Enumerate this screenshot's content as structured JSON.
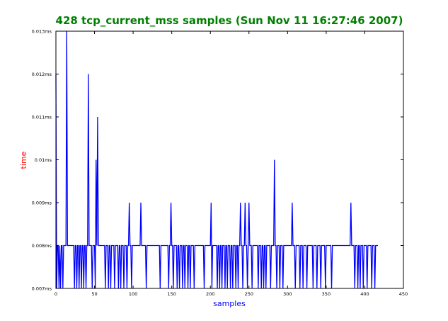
{
  "chart_data": {
    "type": "line",
    "title": "428 tcp_current_mss samples (Sun Nov 11 16:27:46 2007)",
    "xlabel": "samples",
    "ylabel": "time",
    "xlim": [
      0,
      450
    ],
    "ylim": [
      0.007,
      0.013
    ],
    "x_ticks": [
      0,
      50,
      100,
      150,
      200,
      250,
      300,
      350,
      400,
      450
    ],
    "x_tick_labels": [
      "0",
      "50",
      "100",
      "150",
      "200",
      "250",
      "300",
      "350",
      "400",
      "450"
    ],
    "y_ticks": [
      0.007,
      0.008,
      0.009,
      0.01,
      0.011,
      0.012,
      0.013
    ],
    "y_tick_labels": [
      "0.007ms",
      "0.008ms",
      "0.009ms",
      "0.01ms",
      "0.011ms",
      "0.012ms",
      "0.013ms"
    ],
    "grid": false,
    "legend": "none",
    "colors": {
      "title": "#008000",
      "xlabel": "#0000ff",
      "ylabel": "#ff0000",
      "line": "#0000ff"
    },
    "series": [
      {
        "values": [
          0.012,
          0.007,
          0.008,
          0.008,
          0.007,
          0.008,
          0.007,
          0.008,
          0.008,
          0.007,
          0.008,
          0.008,
          0.008,
          0.008,
          0.013,
          0.008,
          0.008,
          0.008,
          0.008,
          0.008,
          0.008,
          0.008,
          0.008,
          0.008,
          0.007,
          0.008,
          0.008,
          0.007,
          0.008,
          0.008,
          0.007,
          0.008,
          0.008,
          0.007,
          0.008,
          0.008,
          0.007,
          0.008,
          0.008,
          0.007,
          0.008,
          0.008,
          0.012,
          0.008,
          0.008,
          0.008,
          0.008,
          0.007,
          0.008,
          0.008,
          0.008,
          0.007,
          0.01,
          0.008,
          0.011,
          0.008,
          0.008,
          0.008,
          0.008,
          0.008,
          0.008,
          0.008,
          0.008,
          0.008,
          0.007,
          0.008,
          0.008,
          0.008,
          0.007,
          0.008,
          0.008,
          0.007,
          0.008,
          0.008,
          0.008,
          0.008,
          0.007,
          0.008,
          0.008,
          0.008,
          0.008,
          0.007,
          0.008,
          0.008,
          0.007,
          0.008,
          0.008,
          0.008,
          0.007,
          0.008,
          0.008,
          0.008,
          0.007,
          0.008,
          0.008,
          0.009,
          0.008,
          0.008,
          0.007,
          0.008,
          0.008,
          0.008,
          0.008,
          0.008,
          0.008,
          0.008,
          0.008,
          0.008,
          0.008,
          0.008,
          0.009,
          0.008,
          0.008,
          0.008,
          0.008,
          0.008,
          0.008,
          0.007,
          0.008,
          0.008,
          0.008,
          0.008,
          0.008,
          0.008,
          0.008,
          0.008,
          0.008,
          0.008,
          0.008,
          0.008,
          0.008,
          0.008,
          0.008,
          0.008,
          0.008,
          0.007,
          0.008,
          0.008,
          0.008,
          0.008,
          0.008,
          0.008,
          0.008,
          0.008,
          0.008,
          0.008,
          0.007,
          0.008,
          0.008,
          0.009,
          0.008,
          0.008,
          0.007,
          0.008,
          0.008,
          0.008,
          0.008,
          0.007,
          0.008,
          0.008,
          0.007,
          0.008,
          0.008,
          0.008,
          0.007,
          0.008,
          0.008,
          0.007,
          0.008,
          0.008,
          0.008,
          0.007,
          0.008,
          0.008,
          0.007,
          0.008,
          0.008,
          0.008,
          0.008,
          0.007,
          0.008,
          0.008,
          0.008,
          0.008,
          0.008,
          0.008,
          0.008,
          0.008,
          0.008,
          0.008,
          0.008,
          0.008,
          0.007,
          0.008,
          0.008,
          0.008,
          0.008,
          0.008,
          0.008,
          0.008,
          0.008,
          0.009,
          0.007,
          0.008,
          0.008,
          0.008,
          0.008,
          0.008,
          0.008,
          0.007,
          0.008,
          0.008,
          0.007,
          0.008,
          0.008,
          0.007,
          0.008,
          0.008,
          0.008,
          0.007,
          0.008,
          0.008,
          0.007,
          0.008,
          0.008,
          0.008,
          0.007,
          0.008,
          0.008,
          0.007,
          0.008,
          0.008,
          0.008,
          0.007,
          0.008,
          0.008,
          0.007,
          0.008,
          0.008,
          0.009,
          0.008,
          0.008,
          0.007,
          0.008,
          0.008,
          0.009,
          0.008,
          0.008,
          0.007,
          0.008,
          0.009,
          0.008,
          0.008,
          0.008,
          0.007,
          0.008,
          0.008,
          0.008,
          0.008,
          0.008,
          0.008,
          0.008,
          0.007,
          0.008,
          0.008,
          0.008,
          0.007,
          0.008,
          0.008,
          0.007,
          0.008,
          0.008,
          0.007,
          0.008,
          0.008,
          0.008,
          0.008,
          0.008,
          0.007,
          0.008,
          0.008,
          0.008,
          0.008,
          0.01,
          0.008,
          0.008,
          0.007,
          0.008,
          0.008,
          0.008,
          0.007,
          0.008,
          0.008,
          0.008,
          0.007,
          0.008,
          0.008,
          0.008,
          0.008,
          0.008,
          0.008,
          0.008,
          0.008,
          0.008,
          0.008,
          0.008,
          0.009,
          0.008,
          0.008,
          0.008,
          0.007,
          0.008,
          0.008,
          0.008,
          0.008,
          0.008,
          0.007,
          0.008,
          0.008,
          0.008,
          0.007,
          0.008,
          0.008,
          0.008,
          0.008,
          0.007,
          0.008,
          0.008,
          0.008,
          0.008,
          0.008,
          0.008,
          0.008,
          0.007,
          0.008,
          0.008,
          0.008,
          0.008,
          0.007,
          0.008,
          0.008,
          0.008,
          0.008,
          0.007,
          0.008,
          0.008,
          0.008,
          0.008,
          0.008,
          0.007,
          0.008,
          0.008,
          0.008,
          0.008,
          0.008,
          0.008,
          0.008,
          0.007,
          0.008,
          0.008,
          0.008,
          0.008,
          0.008,
          0.008,
          0.008,
          0.008,
          0.008,
          0.008,
          0.008,
          0.008,
          0.008,
          0.008,
          0.008,
          0.008,
          0.008,
          0.008,
          0.008,
          0.008,
          0.008,
          0.008,
          0.008,
          0.008,
          0.009,
          0.008,
          0.008,
          0.008,
          0.008,
          0.007,
          0.008,
          0.008,
          0.008,
          0.007,
          0.008,
          0.008,
          0.007,
          0.008,
          0.008,
          0.008,
          0.007,
          0.008,
          0.008,
          0.008,
          0.008,
          0.007,
          0.008,
          0.008,
          0.008,
          0.008,
          0.008,
          0.007,
          0.008,
          0.008,
          0.008,
          0.007,
          0.008,
          0.008,
          0.008,
          0.008
        ]
      }
    ]
  }
}
